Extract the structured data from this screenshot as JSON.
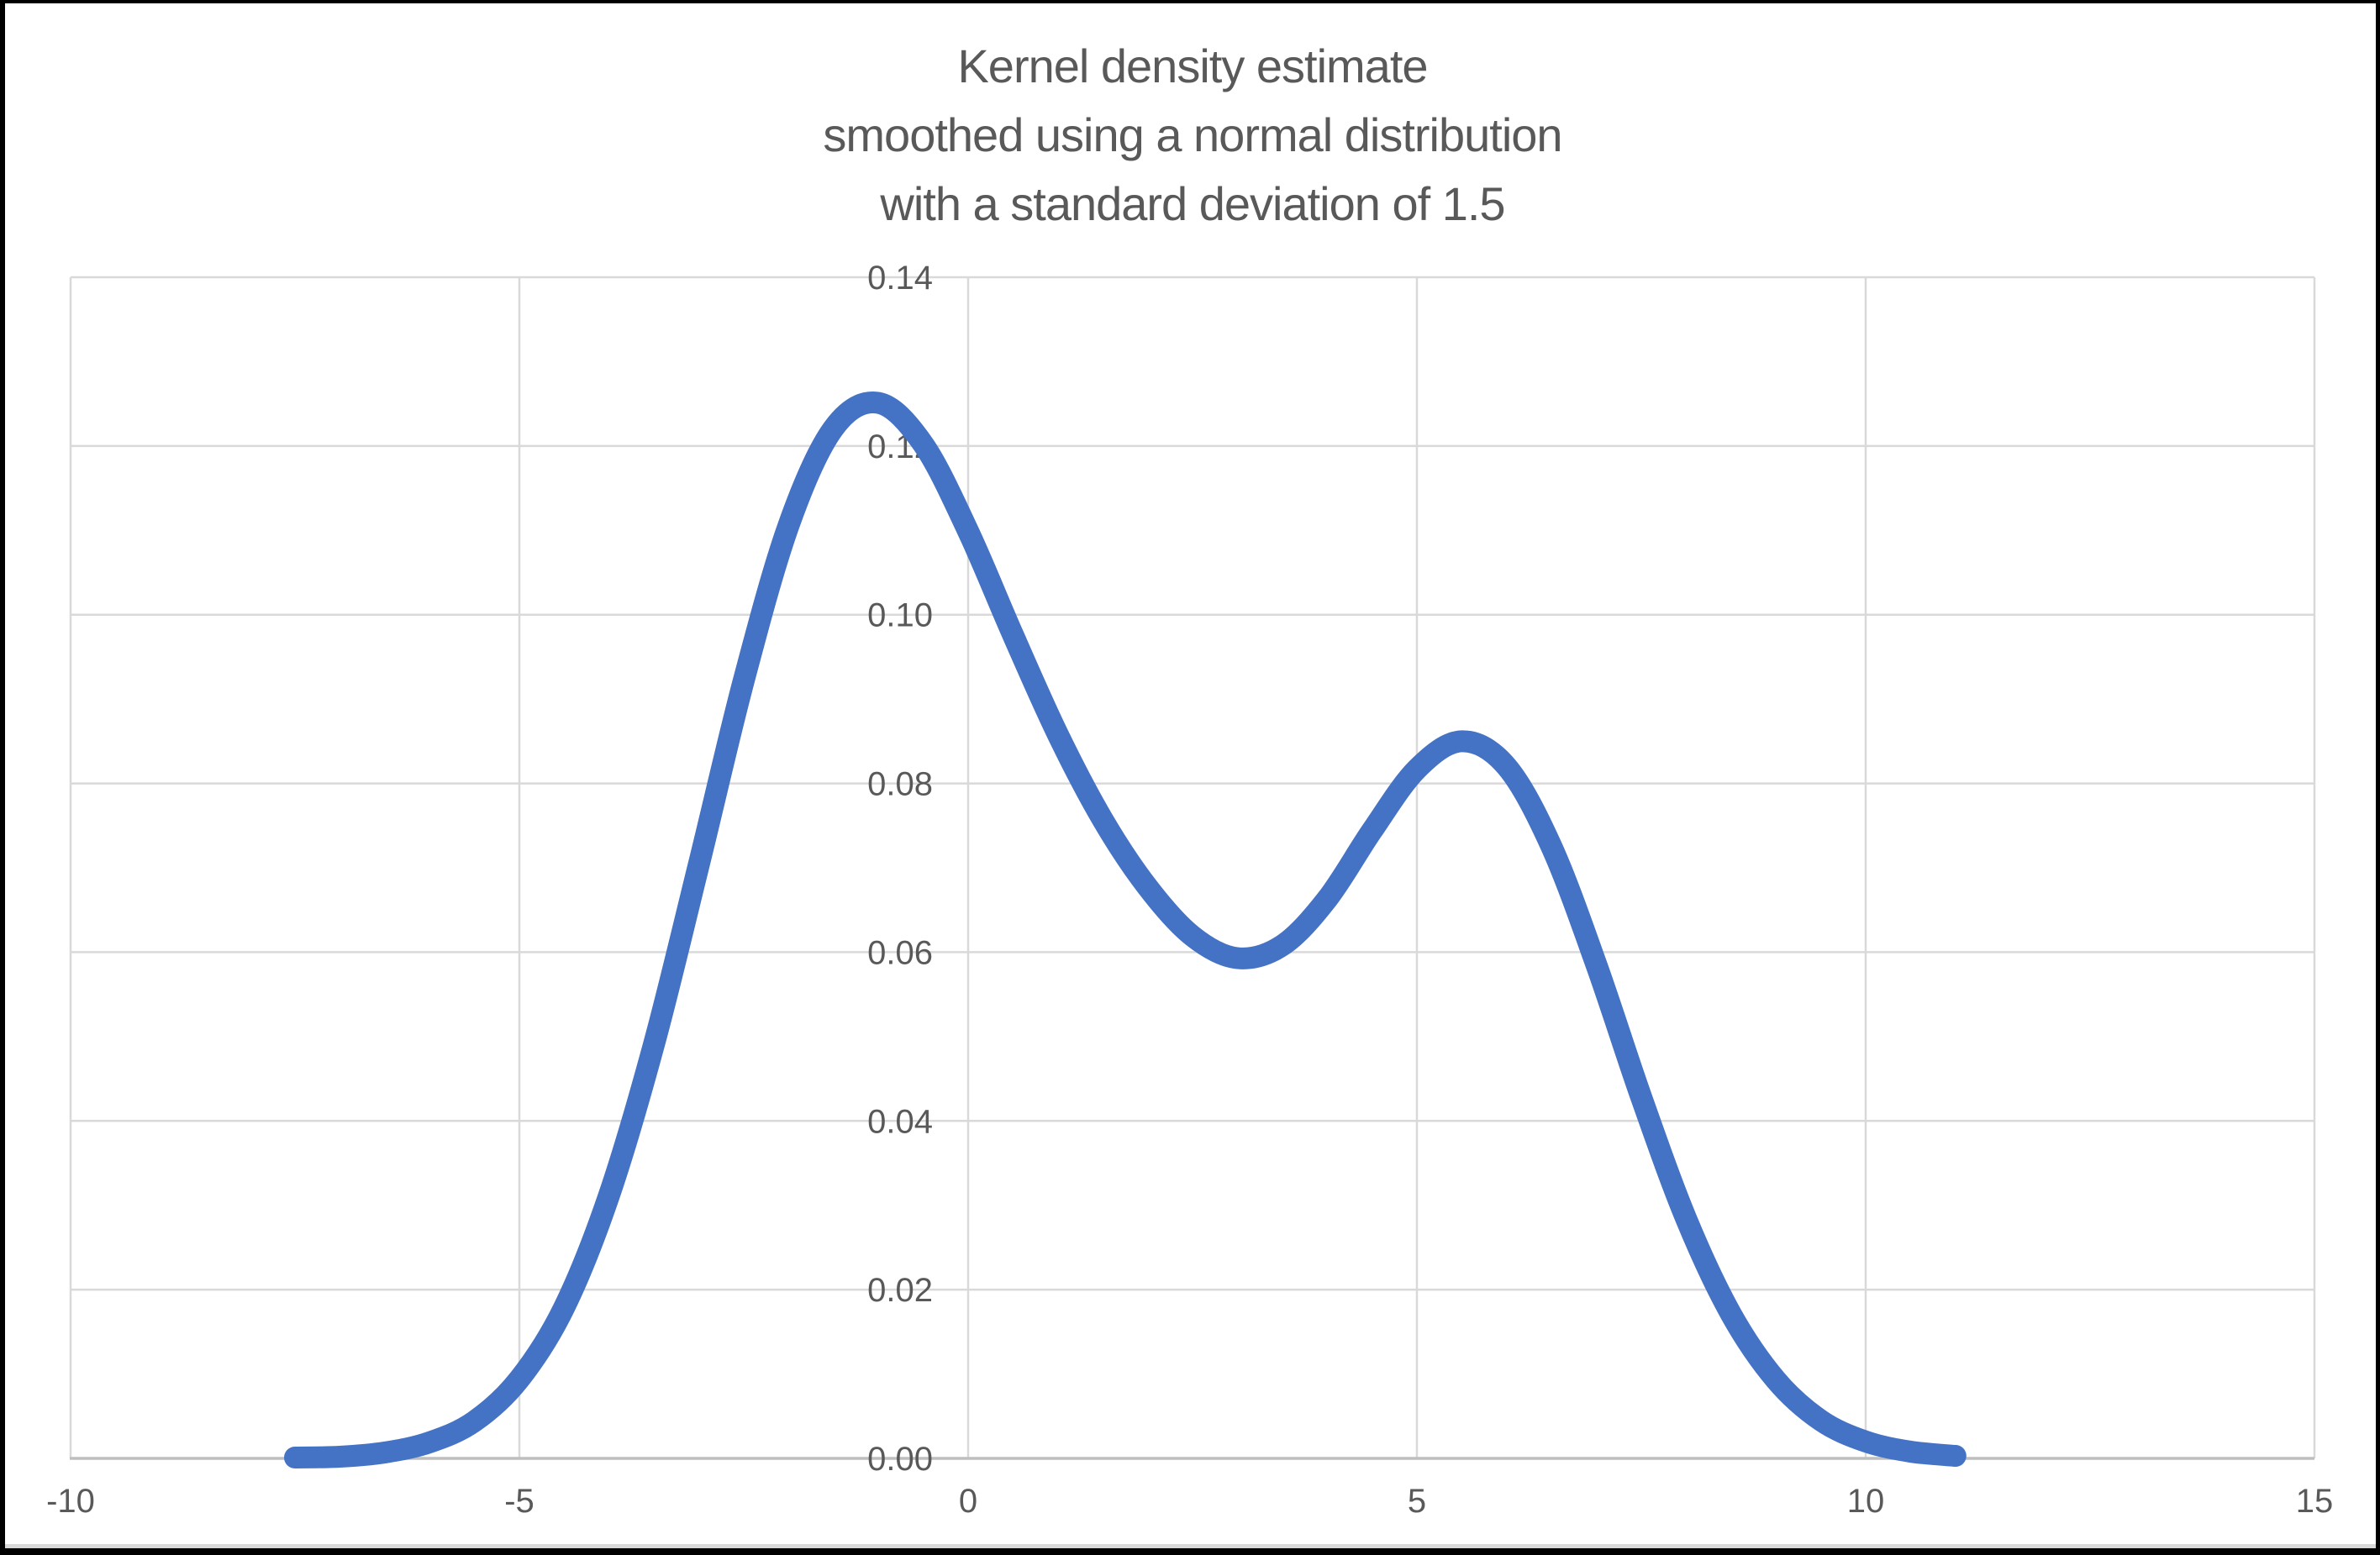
{
  "window": {
    "background_color": "#ffffff",
    "frame_color": "#000000"
  },
  "title": {
    "lines": [
      "Kernel density estimate",
      "smoothed using a normal distribution",
      "with a standard deviation of 1.5"
    ],
    "color": "#595959"
  },
  "chart_data": {
    "type": "line",
    "title": "Kernel density estimate smoothed using a normal distribution with a standard deviation of 1.5",
    "xlabel": "",
    "ylabel": "",
    "xlim": [
      -10,
      15
    ],
    "ylim": [
      0,
      0.14
    ],
    "x_ticks": [
      -10,
      -5,
      0,
      5,
      10,
      15
    ],
    "x_tick_labels": [
      "-10",
      "-5",
      "0",
      "5",
      "10",
      "15"
    ],
    "y_ticks": [
      0,
      0.02,
      0.04,
      0.06,
      0.08,
      0.1,
      0.12,
      0.14
    ],
    "y_tick_labels": [
      "0.00",
      "0.02",
      "0.04",
      "0.06",
      "0.08",
      "0.10",
      "0.12",
      "0.14"
    ],
    "grid": true,
    "legend": "none",
    "styles": {
      "line_color": "#4472C4",
      "line_width": 26,
      "gridline_color": "#D9D9D9",
      "axis_line_color": "#BFBFBF",
      "tick_label_color": "#595959"
    },
    "series": [
      {
        "name": "Kernel density estimate",
        "x": [
          -7.5,
          -7.0,
          -6.5,
          -6.0,
          -5.5,
          -5.0,
          -4.5,
          -4.0,
          -3.5,
          -3.0,
          -2.5,
          -2.0,
          -1.5,
          -1.0,
          -0.5,
          0.0,
          0.5,
          1.0,
          1.5,
          2.0,
          2.5,
          3.0,
          3.5,
          4.0,
          4.5,
          5.0,
          5.5,
          6.0,
          6.5,
          7.0,
          7.5,
          8.0,
          8.5,
          9.0,
          9.5,
          10.0,
          10.5,
          11.0
        ],
        "y": [
          0.0001,
          0.0002,
          0.0007,
          0.0019,
          0.0044,
          0.0094,
          0.0179,
          0.0312,
          0.0491,
          0.0704,
          0.0922,
          0.1106,
          0.1221,
          0.1251,
          0.1202,
          0.1099,
          0.0976,
          0.0858,
          0.0757,
          0.0677,
          0.0619,
          0.0593,
          0.0608,
          0.0663,
          0.0744,
          0.0817,
          0.085,
          0.082,
          0.0725,
          0.0585,
          0.0428,
          0.0284,
          0.0171,
          0.0093,
          0.0045,
          0.002,
          0.0008,
          0.0003
        ]
      }
    ]
  }
}
